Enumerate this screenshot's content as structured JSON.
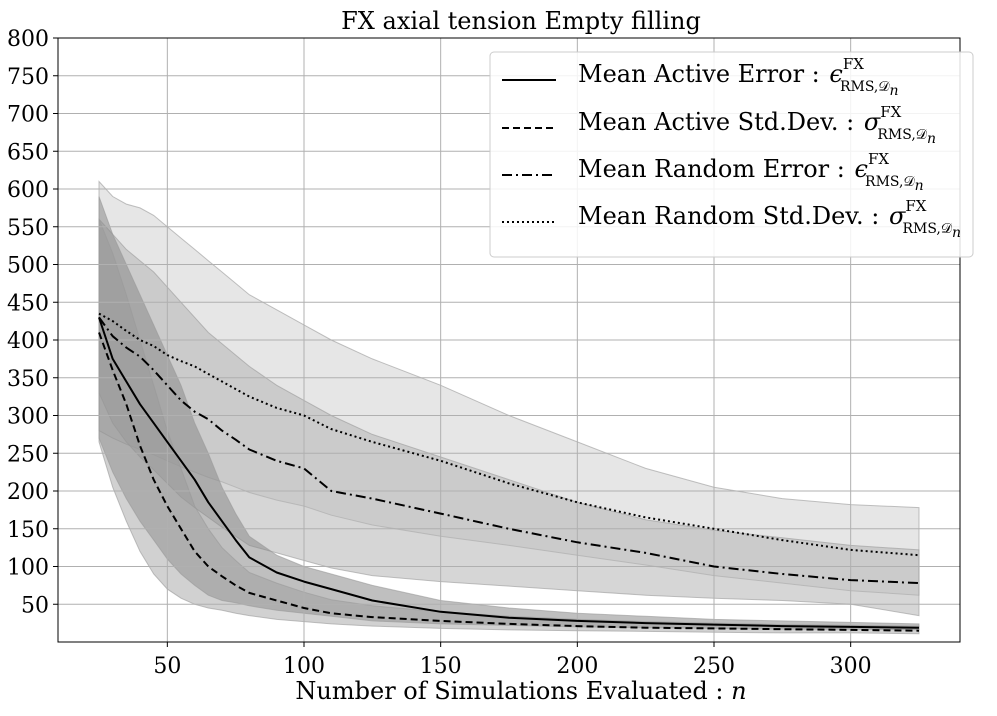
{
  "chart_data": {
    "type": "line",
    "title": "FX axial tension Empty filling",
    "xlabel": "Number of Simulations Evaluated : ",
    "xlabel_var": "n",
    "ylabel": "",
    "xlim": [
      10,
      340
    ],
    "ylim": [
      0,
      800
    ],
    "xticks": [
      50,
      100,
      150,
      200,
      250,
      300
    ],
    "yticks": [
      50,
      100,
      150,
      200,
      250,
      300,
      350,
      400,
      450,
      500,
      550,
      600,
      650,
      700,
      750,
      800
    ],
    "grid": true,
    "legend_position": "top-right",
    "x": [
      25,
      30,
      35,
      40,
      45,
      50,
      55,
      60,
      65,
      70,
      75,
      80,
      90,
      100,
      110,
      125,
      150,
      175,
      200,
      225,
      250,
      275,
      300,
      325
    ],
    "series": [
      {
        "name": "Mean Active Error",
        "symbol": "ϵ",
        "sup": "FX",
        "sub": "RMS,𝒟",
        "subsub": "n",
        "style": "solid",
        "values": [
          430,
          375,
          345,
          315,
          290,
          265,
          240,
          215,
          185,
          160,
          135,
          112,
          92,
          80,
          70,
          55,
          40,
          32,
          28,
          25,
          23,
          21,
          20,
          19
        ],
        "band_lower": [
          270,
          225,
          190,
          160,
          135,
          110,
          90,
          75,
          62,
          55,
          52,
          48,
          42,
          38,
          34,
          28,
          24,
          22,
          20,
          19,
          18,
          17,
          17,
          16
        ],
        "band_upper": [
          590,
          540,
          500,
          460,
          420,
          380,
          340,
          290,
          250,
          205,
          170,
          140,
          115,
          100,
          90,
          75,
          55,
          45,
          38,
          34,
          30,
          28,
          26,
          24
        ]
      },
      {
        "name": "Mean Active Std.Dev.",
        "symbol": "σ",
        "sup": "FX",
        "sub": "RMS,𝒟",
        "subsub": "n",
        "style": "dashed",
        "values": [
          410,
          360,
          315,
          260,
          215,
          180,
          150,
          120,
          100,
          87,
          75,
          65,
          55,
          45,
          38,
          33,
          28,
          24,
          21,
          19,
          18,
          17,
          16,
          15
        ],
        "band_lower": [
          265,
          205,
          160,
          120,
          90,
          70,
          58,
          50,
          45,
          42,
          38,
          35,
          30,
          27,
          24,
          21,
          18,
          16,
          15,
          14,
          13,
          12,
          12,
          11
        ],
        "band_upper": [
          560,
          515,
          460,
          400,
          340,
          280,
          230,
          180,
          150,
          125,
          108,
          92,
          78,
          66,
          56,
          48,
          40,
          34,
          30,
          27,
          25,
          23,
          22,
          21
        ]
      },
      {
        "name": "Mean Random Error",
        "symbol": "ϵ",
        "sup": "FX",
        "sub": "RMS,𝒟",
        "subsub": "n",
        "style": "dashdot",
        "values": [
          430,
          405,
          390,
          378,
          360,
          340,
          320,
          305,
          295,
          280,
          268,
          255,
          240,
          230,
          200,
          190,
          170,
          150,
          132,
          118,
          100,
          90,
          82,
          78
        ],
        "band_lower": [
          330,
          290,
          265,
          245,
          228,
          210,
          192,
          178,
          165,
          152,
          140,
          128,
          118,
          108,
          98,
          88,
          80,
          74,
          68,
          62,
          58,
          55,
          50,
          35
        ],
        "band_upper": [
          560,
          540,
          520,
          505,
          490,
          470,
          450,
          430,
          410,
          395,
          380,
          365,
          340,
          320,
          300,
          275,
          245,
          215,
          185,
          162,
          148,
          138,
          128,
          122
        ]
      },
      {
        "name": "Mean Random Std.Dev.",
        "symbol": "σ",
        "sup": "FX",
        "sub": "RMS,𝒟",
        "subsub": "n",
        "style": "dotted",
        "values": [
          435,
          425,
          412,
          400,
          392,
          380,
          372,
          365,
          355,
          345,
          335,
          325,
          310,
          300,
          282,
          265,
          240,
          210,
          185,
          165,
          150,
          135,
          122,
          115
        ],
        "band_lower": [
          280,
          270,
          262,
          255,
          248,
          240,
          232,
          225,
          218,
          212,
          205,
          198,
          188,
          180,
          168,
          155,
          140,
          128,
          115,
          102,
          88,
          78,
          68,
          62
        ],
        "band_upper": [
          610,
          590,
          580,
          575,
          565,
          550,
          535,
          520,
          505,
          490,
          475,
          460,
          440,
          420,
          400,
          375,
          340,
          300,
          265,
          230,
          205,
          190,
          182,
          178
        ]
      }
    ]
  }
}
